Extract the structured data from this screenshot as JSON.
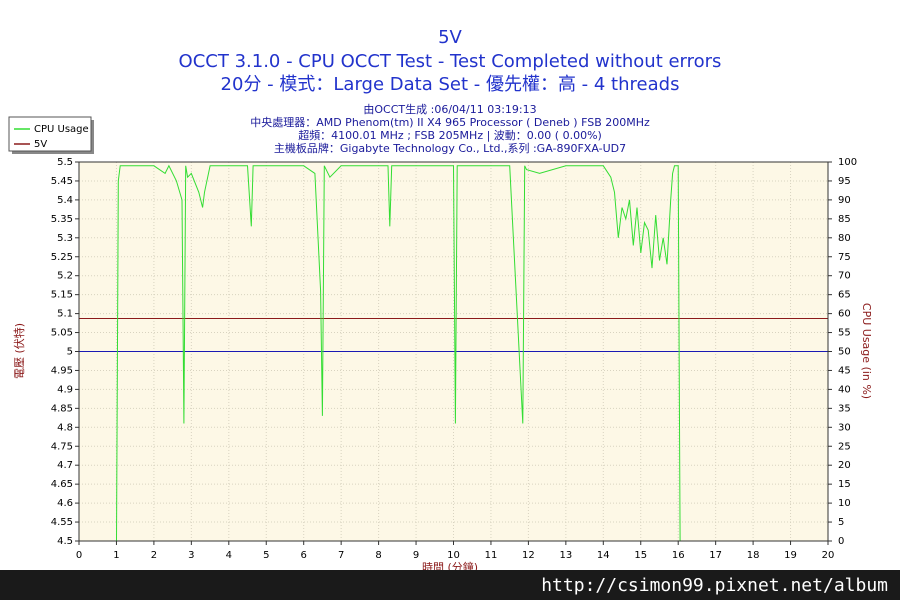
{
  "chart_data": {
    "type": "line",
    "title": "5V",
    "title_lines": [
      "OCCT 3.1.0 - CPU OCCT Test - Test Completed without errors",
      "20分 - 模式：Large Data Set - 優先權：高 - 4 threads"
    ],
    "subtitle_lines": [
      "由OCCT生成 :06/04/11 03:19:13",
      "中央處理器：AMD Phenom(tm) II X4 965 Processor ( Deneb ) FSB 200MHz",
      "超頻：4100.01 MHz ; FSB 205MHz | 波動：0.00 ( 0.00%)",
      "主機板品牌：Gigabyte Technology Co., Ltd.,系列 :GA-890FXA-UD7"
    ],
    "x_label": "時間 (分鐘)",
    "y_label": "電壓 (伏特)",
    "y2_label": "CPU Usage (in %)",
    "xlim": [
      0,
      20
    ],
    "xticks": [
      0,
      1,
      2,
      3,
      4,
      5,
      6,
      7,
      8,
      9,
      10,
      11,
      12,
      13,
      14,
      15,
      16,
      17,
      18,
      19,
      20
    ],
    "ylim": [
      4.5,
      5.5
    ],
    "yticks": [
      4.5,
      4.55,
      4.6,
      4.65,
      4.7,
      4.75,
      4.8,
      4.85,
      4.9,
      4.95,
      5,
      5.05,
      5.1,
      5.15,
      5.2,
      5.25,
      5.3,
      5.35,
      5.4,
      5.45,
      5.5
    ],
    "y2lim": [
      0,
      100
    ],
    "y2ticks": [
      0,
      5,
      10,
      15,
      20,
      25,
      30,
      35,
      40,
      45,
      50,
      55,
      60,
      65,
      70,
      75,
      80,
      85,
      90,
      95,
      100
    ],
    "grid": true,
    "legend": "top-left",
    "hline": {
      "value": 5,
      "color": "#1a1ab4"
    },
    "series": [
      {
        "name": "CPU Usage",
        "color": "#33dd33",
        "axis": "y2",
        "x": [
          1.0,
          1.05,
          1.1,
          1.5,
          2.0,
          2.3,
          2.4,
          2.6,
          2.75,
          2.8,
          2.85,
          2.9,
          3.0,
          3.2,
          3.3,
          3.35,
          3.5,
          4.0,
          4.5,
          4.6,
          4.65,
          5.0,
          5.5,
          6.0,
          6.3,
          6.45,
          6.5,
          6.55,
          6.7,
          7.0,
          7.5,
          8.0,
          8.25,
          8.3,
          8.35,
          8.5,
          9.0,
          9.5,
          10.0,
          10.05,
          10.1,
          10.15,
          10.5,
          11.0,
          11.5,
          11.85,
          11.9,
          11.95,
          12.3,
          13.0,
          13.5,
          14.0,
          14.2,
          14.3,
          14.4,
          14.5,
          14.6,
          14.7,
          14.8,
          14.9,
          15.0,
          15.1,
          15.2,
          15.3,
          15.4,
          15.5,
          15.6,
          15.7,
          15.8,
          15.85,
          15.9,
          16.0,
          16.05
        ],
        "values": [
          0,
          95,
          99,
          99,
          99,
          97,
          99,
          95,
          90,
          31,
          99,
          96,
          97,
          92,
          88,
          92,
          99,
          99,
          99,
          83,
          99,
          99,
          99,
          99,
          97,
          66,
          33,
          99,
          96,
          99,
          99,
          99,
          99,
          83,
          99,
          99,
          99,
          99,
          99,
          31,
          99,
          99,
          99,
          99,
          99,
          31,
          99,
          98,
          97,
          99,
          99,
          99,
          96,
          92,
          80,
          88,
          85,
          90,
          78,
          88,
          76,
          84,
          82,
          72,
          86,
          74,
          80,
          73,
          90,
          97,
          99,
          99,
          0
        ]
      },
      {
        "name": "5V",
        "color": "#8b1a1a",
        "x": [
          0,
          20
        ],
        "values": [
          5.087,
          5.087
        ]
      }
    ],
    "watermark": "http://csimon99.pixnet.net/album"
  }
}
